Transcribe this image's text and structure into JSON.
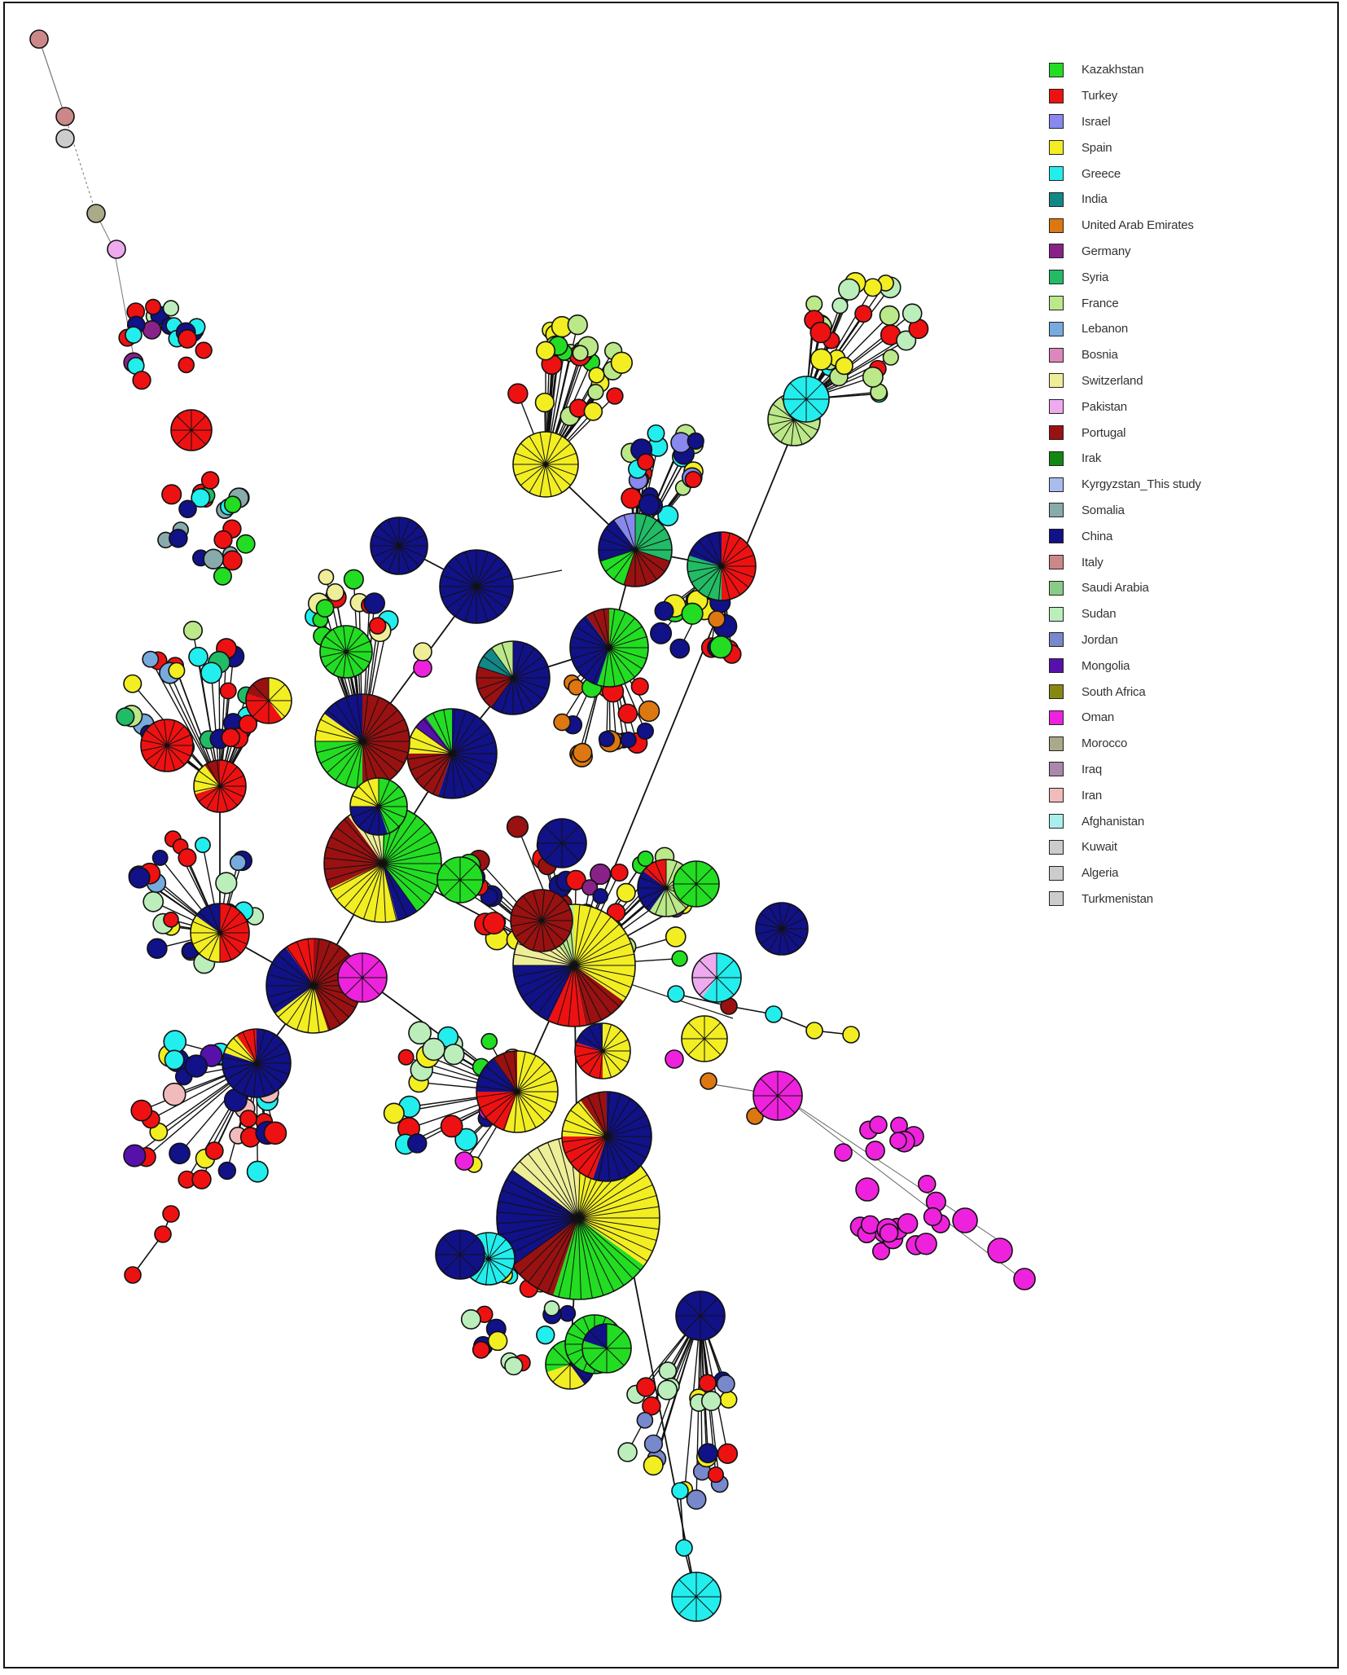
{
  "legend": {
    "items": [
      {
        "label": "Kazakhstan",
        "color": "#22dd22"
      },
      {
        "label": "Turkey",
        "color": "#ee1111"
      },
      {
        "label": "Israel",
        "color": "#8888ee"
      },
      {
        "label": "Spain",
        "color": "#f2ee22"
      },
      {
        "label": "Greece",
        "color": "#22eeee"
      },
      {
        "label": "India",
        "color": "#118888"
      },
      {
        "label": "United Arab Emirates",
        "color": "#dd7711"
      },
      {
        "label": "Germany",
        "color": "#882288"
      },
      {
        "label": "Syria",
        "color": "#22bb66"
      },
      {
        "label": "France",
        "color": "#bbe888"
      },
      {
        "label": "Lebanon",
        "color": "#77aadd"
      },
      {
        "label": "Bosnia",
        "color": "#dd88bb"
      },
      {
        "label": "Switzerland",
        "color": "#eeee99"
      },
      {
        "label": "Pakistan",
        "color": "#eeaaee"
      },
      {
        "label": "Portugal",
        "color": "#991111"
      },
      {
        "label": "Irak",
        "color": "#118811"
      },
      {
        "label": "Kyrgyzstan_This study",
        "color": "#aabbee"
      },
      {
        "label": "Somalia",
        "color": "#88aaaa"
      },
      {
        "label": "China",
        "color": "#111188"
      },
      {
        "label": "Italy",
        "color": "#cc8888"
      },
      {
        "label": "Saudi Arabia",
        "color": "#88cc88"
      },
      {
        "label": "Sudan",
        "color": "#bbeebb"
      },
      {
        "label": "Jordan",
        "color": "#7788cc"
      },
      {
        "label": "Mongolia",
        "color": "#5511aa"
      },
      {
        "label": "South Africa",
        "color": "#888811"
      },
      {
        "label": "Oman",
        "color": "#ee22dd"
      },
      {
        "label": "Morocco",
        "color": "#aaaa88"
      },
      {
        "label": "Iraq",
        "color": "#aa88aa"
      },
      {
        "label": "Iran",
        "color": "#f2bbbb"
      },
      {
        "label": "Afghanistan",
        "color": "#aaeeee"
      },
      {
        "label": "Kuwait",
        "color": "#cccccc"
      },
      {
        "label": "Algeria",
        "color": "#cccccc"
      },
      {
        "label": "Turkmenistan",
        "color": "#cccccc"
      }
    ]
  }
}
